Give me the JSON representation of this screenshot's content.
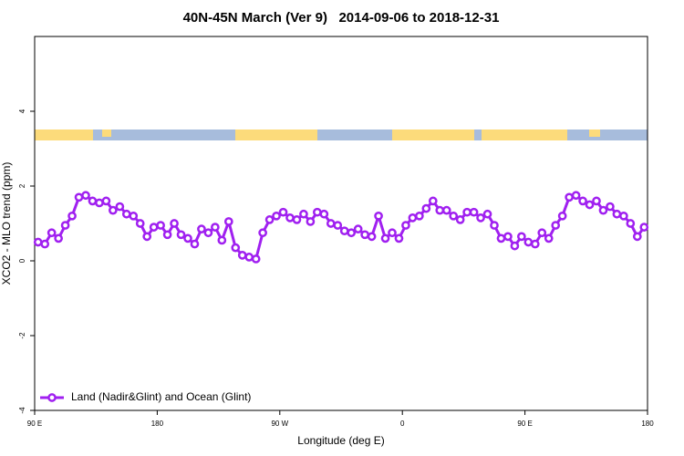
{
  "chart_data": {
    "type": "line",
    "title": "40N-45N March (Ver 9)   2014-09-06 to 2018-12-31",
    "x_label": "Longitude (deg E)",
    "y_label": "XCO2 - MLO trend (ppm)",
    "xlim": [
      90,
      540
    ],
    "ylim": [
      -4,
      6
    ],
    "xticks": [
      {
        "value": 90,
        "label": "90 E"
      },
      {
        "value": 180,
        "label": "180"
      },
      {
        "value": 270,
        "label": "90 W"
      },
      {
        "value": 360,
        "label": "0"
      },
      {
        "value": 450,
        "label": "90 E"
      },
      {
        "value": 540,
        "label": "180"
      }
    ],
    "yticks": [
      -4,
      -2,
      0,
      2,
      4
    ],
    "legend": "bottomleft",
    "x": [
      92.5,
      97.5,
      102.5,
      107.5,
      112.5,
      117.5,
      122.5,
      127.5,
      132.5,
      137.5,
      142.5,
      147.5,
      152.5,
      157.5,
      162.5,
      167.5,
      172.5,
      177.5,
      182.5,
      187.5,
      192.5,
      197.5,
      202.5,
      207.5,
      212.5,
      217.5,
      222.5,
      227.5,
      232.5,
      237.5,
      242.5,
      247.5,
      252.5,
      257.5,
      262.5,
      267.5,
      272.5,
      277.5,
      282.5,
      287.5,
      292.5,
      297.5,
      302.5,
      307.5,
      312.5,
      317.5,
      322.5,
      327.5,
      332.5,
      337.5,
      342.5,
      347.5,
      352.5,
      357.5,
      362.5,
      367.5,
      372.5,
      377.5,
      382.5,
      387.5,
      392.5,
      397.5,
      402.5,
      407.5,
      412.5,
      417.5,
      422.5,
      427.5,
      432.5,
      437.5,
      442.5,
      447.5,
      452.5,
      457.5,
      462.5,
      467.5,
      472.5,
      477.5,
      482.5,
      487.5,
      492.5,
      497.5,
      502.5,
      507.5,
      512.5,
      517.5,
      522.5,
      527.5,
      532.5,
      537.5
    ],
    "series": [
      {
        "name": "Land (Nadir&Glint) and Ocean (Glint)",
        "color": "#a020f0",
        "values": [
          0.5,
          0.45,
          0.75,
          0.6,
          0.95,
          1.2,
          1.7,
          1.75,
          1.6,
          1.55,
          1.6,
          1.35,
          1.45,
          1.25,
          1.2,
          1.0,
          0.65,
          0.9,
          0.95,
          0.7,
          1.0,
          0.7,
          0.6,
          0.45,
          0.85,
          0.75,
          0.9,
          0.55,
          1.05,
          0.35,
          0.15,
          0.1,
          0.05,
          0.75,
          1.1,
          1.2,
          1.3,
          1.15,
          1.1,
          1.25,
          1.05,
          1.3,
          1.25,
          1.0,
          0.95,
          0.8,
          0.75,
          0.85,
          0.7,
          0.65,
          1.2,
          0.6,
          0.75,
          0.6,
          0.95,
          1.15,
          1.2,
          1.4,
          1.6,
          1.35,
          1.35,
          1.2,
          1.1,
          1.3,
          1.3,
          1.15,
          1.25,
          0.95,
          0.6,
          0.65,
          0.4,
          0.65,
          0.5,
          0.45,
          0.75,
          0.6,
          0.95,
          1.2,
          1.7,
          1.75,
          1.6,
          1.5,
          1.6,
          1.35,
          1.45,
          1.25,
          1.2,
          1.0,
          0.65,
          0.9
        ]
      }
    ]
  }
}
